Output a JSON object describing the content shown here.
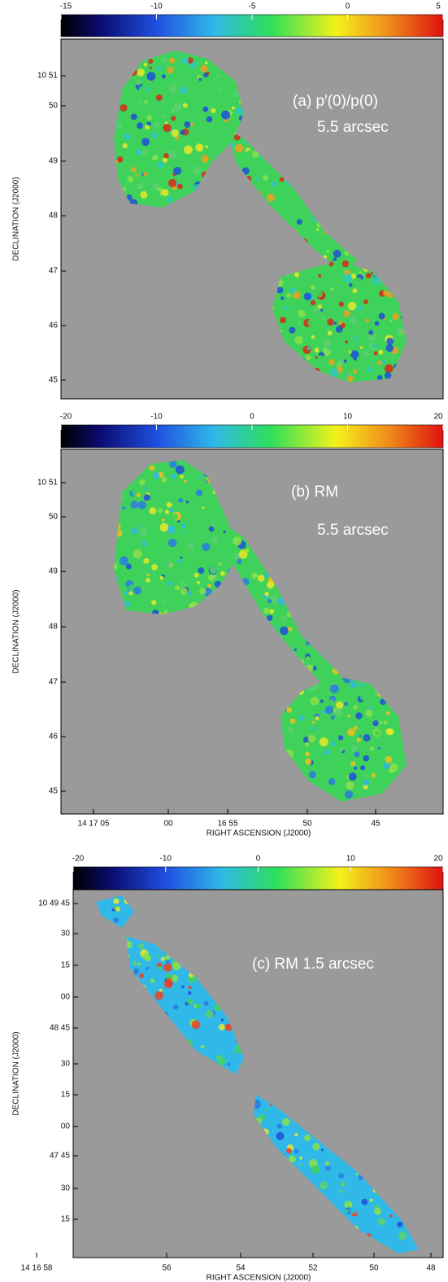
{
  "chart_data": [
    {
      "type": "image",
      "annotation": [
        "(a) p′(0)/p(0)",
        "5.5 arcsec"
      ],
      "clim": [
        -15,
        5
      ],
      "cticks": [
        -15,
        -10,
        -5,
        0,
        5
      ],
      "y_label": "DECLINATION (J2000)",
      "y_tick_labels": [
        "10 51",
        "50",
        "49",
        "48",
        "47",
        "46",
        "45"
      ]
    },
    {
      "type": "image",
      "annotation": [
        "(b) RM",
        "5.5 arcsec"
      ],
      "clim": [
        -20,
        20
      ],
      "cticks": [
        -20,
        -10,
        0,
        10,
        20
      ],
      "y_label": "DECLINATION (J2000)",
      "y_tick_labels": [
        "10 51",
        "50",
        "49",
        "48",
        "47",
        "46",
        "45"
      ],
      "x_label": "RIGHT ASCENSION (J2000)",
      "x_tick_labels": [
        "14 17 05",
        "00",
        "16 55",
        "50",
        "45"
      ]
    },
    {
      "type": "image",
      "annotation": [
        "(c) RM 1.5 arcsec"
      ],
      "clim": [
        -20,
        20
      ],
      "cticks": [
        -20,
        -10,
        0,
        10,
        20
      ],
      "y_label": "DECLINATION (J2000)",
      "y_tick_labels": [
        "10 49 45",
        "30",
        "15",
        "00",
        "48 45",
        "30",
        "15",
        "00",
        "47 45",
        "30",
        "15"
      ],
      "x_label": "RIGHT ASCENSION (J2000)",
      "x_tick_labels": [
        "14 16 58",
        "56",
        "54",
        "52",
        "50",
        "48"
      ]
    }
  ]
}
